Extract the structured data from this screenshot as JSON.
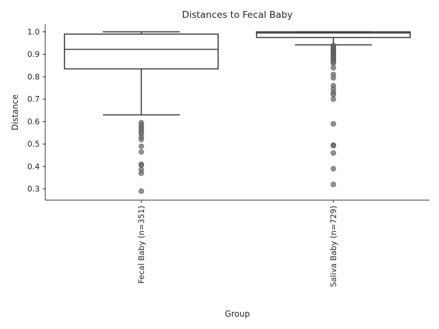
{
  "chart_data": {
    "type": "box",
    "title": "Distances to Fecal Baby",
    "xlabel": "Group",
    "ylabel": "Distance",
    "ylim": [
      0.25,
      1.035
    ],
    "yticks": [
      0.3,
      0.4,
      0.5,
      0.6,
      0.7,
      0.8,
      0.9,
      1.0
    ],
    "ytick_labels": [
      "0.3",
      "0.4",
      "0.5",
      "0.6",
      "0.7",
      "0.8",
      "0.9",
      "1.0"
    ],
    "grid": false,
    "categories": [
      "Fecal Baby (n=351)",
      "Saliva Baby (n=729)"
    ],
    "boxes": [
      {
        "label": "Fecal Baby (n=351)",
        "whisker_low": 0.63,
        "q1": 0.835,
        "median": 0.922,
        "q3": 0.99,
        "whisker_high": 1.0,
        "fliers": [
          0.595,
          0.585,
          0.575,
          0.565,
          0.555,
          0.545,
          0.53,
          0.52,
          0.49,
          0.465,
          0.41,
          0.405,
          0.385,
          0.37,
          0.29
        ]
      },
      {
        "label": "Saliva Baby (n=729)",
        "whisker_low": 0.942,
        "q1": 0.975,
        "median": 0.995,
        "q3": 1.0,
        "whisker_high": 1.0,
        "fliers": [
          0.94,
          0.935,
          0.93,
          0.925,
          0.92,
          0.915,
          0.91,
          0.905,
          0.9,
          0.895,
          0.89,
          0.885,
          0.88,
          0.875,
          0.87,
          0.865,
          0.86,
          0.84,
          0.81,
          0.795,
          0.76,
          0.745,
          0.73,
          0.72,
          0.7,
          0.59,
          0.495,
          0.493,
          0.46,
          0.39,
          0.32
        ]
      }
    ]
  }
}
